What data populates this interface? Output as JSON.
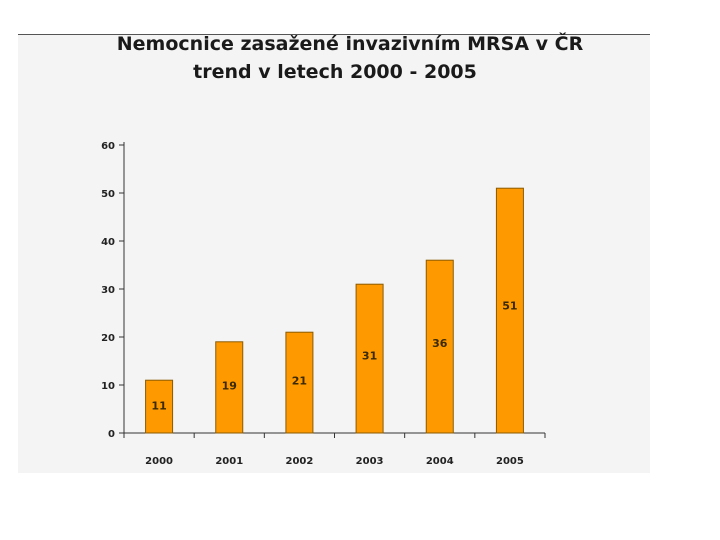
{
  "chart_data": {
    "type": "bar",
    "title_line1": "Nemocnice zasažené invazivním MRSA v ČR",
    "title_line2": "trend v letech 2000 - 2005",
    "categories": [
      "2000",
      "2001",
      "2002",
      "2003",
      "2004",
      "2005"
    ],
    "values": [
      11,
      19,
      21,
      31,
      36,
      51
    ],
    "data_labels": [
      "11",
      "19",
      "21",
      "31",
      "36",
      "51"
    ],
    "ylim": [
      0,
      60
    ],
    "yticks": [
      "0",
      "10",
      "20",
      "30",
      "40",
      "50",
      "60"
    ],
    "xlabel": "",
    "ylabel": "",
    "grid": false,
    "legend": "none",
    "bar_color": "#ff9900",
    "bar_edge_color": "#8a5a00"
  }
}
